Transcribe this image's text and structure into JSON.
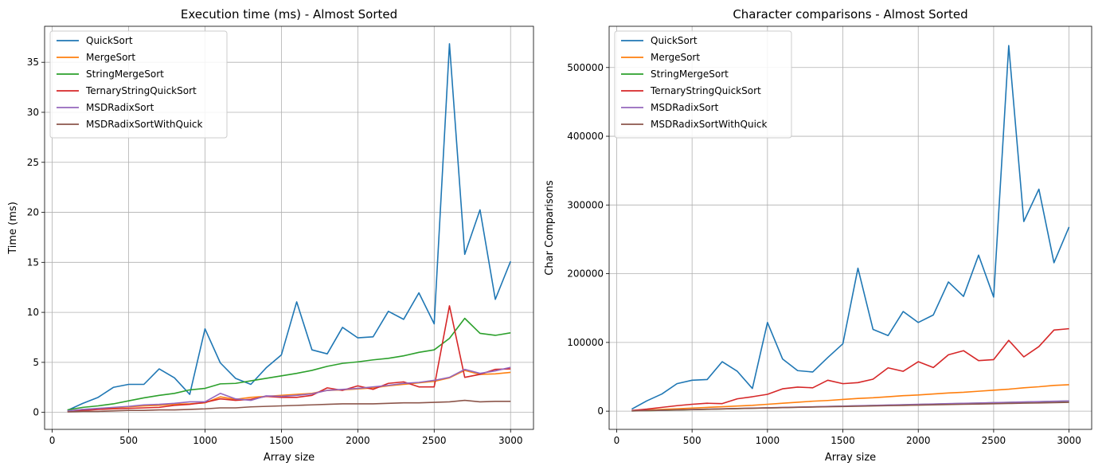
{
  "chart_data": [
    {
      "type": "line",
      "title": "Execution time (ms) - Almost Sorted",
      "xlabel": "Array size",
      "ylabel": "Time (ms)",
      "xlim": [
        -50,
        3150
      ],
      "ylim": [
        -1.7,
        38.6
      ],
      "xticks": [
        0,
        500,
        1000,
        1500,
        2000,
        2500,
        3000
      ],
      "yticks": [
        0,
        5,
        10,
        15,
        20,
        25,
        30,
        35
      ],
      "grid": true,
      "legend_position": "top-left",
      "x": [
        100,
        200,
        300,
        400,
        500,
        600,
        700,
        800,
        900,
        1000,
        1100,
        1200,
        1300,
        1400,
        1500,
        1600,
        1700,
        1800,
        1900,
        2000,
        2100,
        2200,
        2300,
        2400,
        2500,
        2600,
        2700,
        2800,
        2900,
        3000
      ],
      "series": [
        {
          "name": "QuickSort",
          "color": "#1f77b4",
          "values": [
            0.2,
            0.9,
            1.5,
            2.5,
            2.8,
            2.8,
            4.35,
            3.45,
            1.8,
            8.35,
            4.95,
            3.4,
            2.8,
            4.45,
            5.75,
            11.05,
            6.25,
            5.85,
            8.5,
            7.45,
            7.55,
            10.1,
            9.3,
            11.95,
            8.85,
            36.85,
            15.8,
            20.25,
            11.3,
            15.1
          ]
        },
        {
          "name": "MergeSort",
          "color": "#ff7f0e",
          "values": [
            0.1,
            0.3,
            0.35,
            0.45,
            0.55,
            0.65,
            0.7,
            0.8,
            0.85,
            0.95,
            1.55,
            1.3,
            1.5,
            1.6,
            1.7,
            1.8,
            1.9,
            2.2,
            2.25,
            2.35,
            2.45,
            2.65,
            2.8,
            2.95,
            3.1,
            3.45,
            4.2,
            3.8,
            3.85,
            4.0
          ]
        },
        {
          "name": "StringMergeSort",
          "color": "#2ca02c",
          "values": [
            0.25,
            0.5,
            0.65,
            0.85,
            1.15,
            1.45,
            1.7,
            1.9,
            2.25,
            2.4,
            2.85,
            2.9,
            3.15,
            3.4,
            3.65,
            3.9,
            4.2,
            4.6,
            4.9,
            5.05,
            5.25,
            5.4,
            5.65,
            6.0,
            6.25,
            7.4,
            9.4,
            7.9,
            7.7,
            7.95
          ]
        },
        {
          "name": "TernaryStringQuickSort",
          "color": "#d62728",
          "values": [
            0.1,
            0.2,
            0.3,
            0.35,
            0.4,
            0.45,
            0.5,
            0.7,
            0.8,
            1.0,
            1.35,
            1.2,
            1.3,
            1.6,
            1.5,
            1.5,
            1.7,
            2.45,
            2.2,
            2.65,
            2.3,
            2.9,
            3.05,
            2.55,
            2.55,
            10.65,
            3.5,
            3.8,
            4.3,
            4.35
          ]
        },
        {
          "name": "MSDRadixSort",
          "color": "#9467bd",
          "values": [
            0.15,
            0.3,
            0.4,
            0.5,
            0.6,
            0.75,
            0.8,
            0.9,
            1.05,
            1.05,
            1.9,
            1.35,
            1.2,
            1.65,
            1.6,
            1.7,
            1.85,
            2.2,
            2.3,
            2.4,
            2.55,
            2.7,
            2.9,
            3.0,
            3.2,
            3.5,
            4.3,
            3.9,
            4.15,
            4.5
          ]
        },
        {
          "name": "MSDRadixSortWithQuick",
          "color": "#8c564b",
          "values": [
            0.05,
            0.1,
            0.1,
            0.15,
            0.2,
            0.2,
            0.25,
            0.25,
            0.3,
            0.35,
            0.45,
            0.45,
            0.55,
            0.6,
            0.65,
            0.7,
            0.75,
            0.8,
            0.85,
            0.85,
            0.85,
            0.9,
            0.95,
            0.95,
            1.0,
            1.05,
            1.2,
            1.05,
            1.1,
            1.1
          ]
        }
      ]
    },
    {
      "type": "line",
      "title": "Character comparisons - Almost Sorted",
      "xlabel": "Array size",
      "ylabel": "Char Comparisons",
      "xlim": [
        -50,
        3150
      ],
      "ylim": [
        -26500,
        560000
      ],
      "xticks": [
        0,
        500,
        1000,
        1500,
        2000,
        2500,
        3000
      ],
      "yticks": [
        0,
        100000,
        200000,
        300000,
        400000,
        500000
      ],
      "grid": true,
      "legend_position": "top-left",
      "x": [
        100,
        200,
        300,
        400,
        500,
        600,
        700,
        800,
        900,
        1000,
        1100,
        1200,
        1300,
        1400,
        1500,
        1600,
        1700,
        1800,
        1900,
        2000,
        2100,
        2200,
        2300,
        2400,
        2500,
        2600,
        2700,
        2800,
        2900,
        3000
      ],
      "series": [
        {
          "name": "QuickSort",
          "color": "#1f77b4",
          "values": [
            3000,
            15000,
            25000,
            40000,
            45000,
            46000,
            72000,
            58000,
            33000,
            129000,
            76000,
            59000,
            57000,
            78000,
            98000,
            208000,
            119000,
            110000,
            145000,
            129000,
            140000,
            188000,
            167000,
            227000,
            166000,
            532000,
            276000,
            323000,
            216000,
            268000
          ]
        },
        {
          "name": "MergeSort",
          "color": "#ff7f0e",
          "values": [
            500,
            1500,
            2500,
            3500,
            4500,
            5500,
            6500,
            7500,
            8500,
            10000,
            11500,
            13000,
            14500,
            15500,
            17000,
            18500,
            19500,
            21000,
            22500,
            23500,
            25000,
            26500,
            27500,
            29000,
            30500,
            32000,
            34000,
            35500,
            37500,
            38500
          ]
        },
        {
          "name": "StringMergeSort",
          "color": "#2ca02c",
          "values": [
            300,
            700,
            1200,
            1700,
            2200,
            2700,
            3200,
            3700,
            4200,
            4700,
            5200,
            5700,
            6200,
            6700,
            7200,
            7700,
            8200,
            8700,
            9200,
            9700,
            10200,
            10700,
            11200,
            11700,
            12200,
            12700,
            13200,
            13700,
            14200,
            14700
          ]
        },
        {
          "name": "TernaryStringQuickSort",
          "color": "#d62728",
          "values": [
            1000,
            3000,
            5500,
            8000,
            10000,
            11500,
            11000,
            18000,
            21000,
            24500,
            32500,
            35000,
            34000,
            45000,
            40000,
            41500,
            46500,
            63000,
            58000,
            72000,
            63500,
            82000,
            88000,
            73500,
            75000,
            103000,
            79000,
            94000,
            118000,
            120000
          ]
        },
        {
          "name": "MSDRadixSort",
          "color": "#9467bd",
          "values": [
            400,
            900,
            1400,
            1900,
            2400,
            2900,
            3400,
            3900,
            4400,
            4900,
            5400,
            5900,
            6400,
            6900,
            7400,
            7900,
            8400,
            8900,
            9400,
            9900,
            10400,
            10900,
            11400,
            11900,
            12400,
            12900,
            13400,
            13900,
            14400,
            14900
          ]
        },
        {
          "name": "MSDRadixSortWithQuick",
          "color": "#8c564b",
          "values": [
            300,
            800,
            1300,
            1800,
            2300,
            2800,
            3300,
            3800,
            4300,
            4700,
            5200,
            5600,
            6000,
            6400,
            6800,
            7200,
            7600,
            8000,
            8400,
            8800,
            9200,
            9600,
            10000,
            10400,
            10800,
            11200,
            11600,
            12000,
            12400,
            12800
          ]
        }
      ]
    }
  ]
}
